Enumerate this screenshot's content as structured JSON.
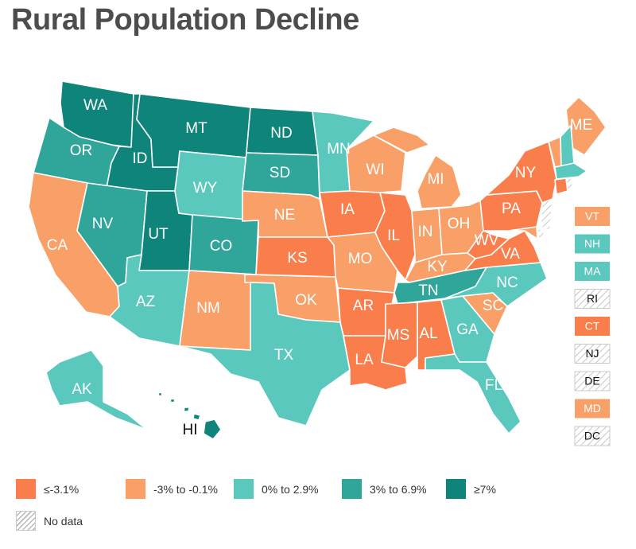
{
  "title": "Rural Population Decline",
  "colors": {
    "c1": "#f97e4b",
    "c2": "#f9a068",
    "c3": "#5bc8bd",
    "c4": "#30a599",
    "c5": "#0e847a",
    "nodata": "#b9b9b9"
  },
  "legend": [
    {
      "key": "c1",
      "label": "≤-3.1%"
    },
    {
      "key": "c2",
      "label": "-3% to -0.1%"
    },
    {
      "key": "c3",
      "label": "0% to 2.9%"
    },
    {
      "key": "c4",
      "label": "3% to 6.9%"
    },
    {
      "key": "c5",
      "label": "≥7%"
    },
    {
      "key": "nodata",
      "label": "No data"
    }
  ],
  "states": {
    "WA": {
      "label": "WA",
      "cat": "c5"
    },
    "OR": {
      "label": "OR",
      "cat": "c4"
    },
    "CA": {
      "label": "CA",
      "cat": "c2"
    },
    "ID": {
      "label": "ID",
      "cat": "c5"
    },
    "NV": {
      "label": "NV",
      "cat": "c4"
    },
    "UT": {
      "label": "UT",
      "cat": "c5"
    },
    "AZ": {
      "label": "AZ",
      "cat": "c3"
    },
    "MT": {
      "label": "MT",
      "cat": "c5"
    },
    "WY": {
      "label": "WY",
      "cat": "c3"
    },
    "CO": {
      "label": "CO",
      "cat": "c4"
    },
    "NM": {
      "label": "NM",
      "cat": "c2"
    },
    "ND": {
      "label": "ND",
      "cat": "c5"
    },
    "SD": {
      "label": "SD",
      "cat": "c4"
    },
    "NE": {
      "label": "NE",
      "cat": "c2"
    },
    "KS": {
      "label": "KS",
      "cat": "c1"
    },
    "OK": {
      "label": "OK",
      "cat": "c2"
    },
    "TX": {
      "label": "TX",
      "cat": "c3"
    },
    "MN": {
      "label": "MN",
      "cat": "c3"
    },
    "IA": {
      "label": "IA",
      "cat": "c1"
    },
    "MO": {
      "label": "MO",
      "cat": "c2"
    },
    "AR": {
      "label": "AR",
      "cat": "c1"
    },
    "LA": {
      "label": "LA",
      "cat": "c1"
    },
    "WI": {
      "label": "WI",
      "cat": "c2"
    },
    "IL": {
      "label": "IL",
      "cat": "c1"
    },
    "MI": {
      "label": "MI",
      "cat": "c2"
    },
    "IN": {
      "label": "IN",
      "cat": "c2"
    },
    "OH": {
      "label": "OH",
      "cat": "c2"
    },
    "KY": {
      "label": "KY",
      "cat": "c2"
    },
    "TN": {
      "label": "TN",
      "cat": "c4"
    },
    "MS": {
      "label": "MS",
      "cat": "c1"
    },
    "AL": {
      "label": "AL",
      "cat": "c1"
    },
    "GA": {
      "label": "GA",
      "cat": "c3"
    },
    "FL": {
      "label": "FL",
      "cat": "c3"
    },
    "SC": {
      "label": "SC",
      "cat": "c2"
    },
    "NC": {
      "label": "NC",
      "cat": "c3"
    },
    "VA": {
      "label": "VA",
      "cat": "c1"
    },
    "WV": {
      "label": "WV",
      "cat": "c1"
    },
    "PA": {
      "label": "PA",
      "cat": "c1"
    },
    "NY": {
      "label": "NY",
      "cat": "c1"
    },
    "ME": {
      "label": "ME",
      "cat": "c2"
    },
    "AK": {
      "label": "AK",
      "cat": "c3"
    },
    "HI": {
      "label": "HI",
      "cat": "c5"
    }
  },
  "small_states": [
    {
      "label": "VT",
      "cat": "c2"
    },
    {
      "label": "NH",
      "cat": "c3"
    },
    {
      "label": "MA",
      "cat": "c3"
    },
    {
      "label": "RI",
      "cat": "nodata"
    },
    {
      "label": "CT",
      "cat": "c1"
    },
    {
      "label": "NJ",
      "cat": "nodata"
    },
    {
      "label": "DE",
      "cat": "nodata"
    },
    {
      "label": "MD",
      "cat": "c2"
    },
    {
      "label": "DC",
      "cat": "nodata"
    }
  ]
}
